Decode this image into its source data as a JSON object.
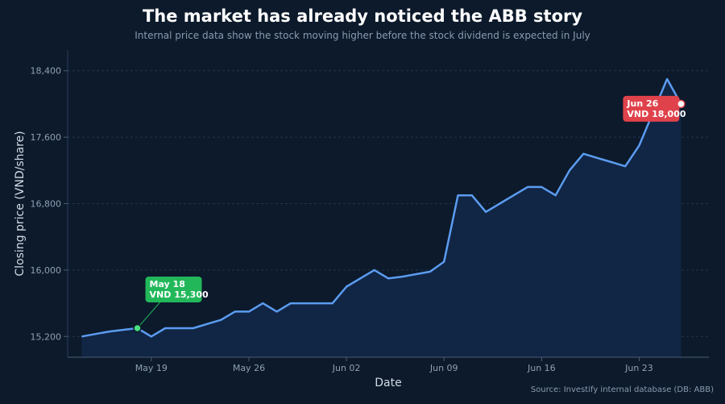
{
  "page": {
    "title": "The market has already noticed the ABB story",
    "subtitle": "Internal price data show the stock moving higher before the stock dividend is expected in July",
    "source": "Source: Investify internal database (DB: ABB)"
  },
  "colors": {
    "background": "#0c1a2b",
    "line": "#5b9cf0",
    "area": "#13284a",
    "grid": "#1f3550",
    "low_annotation": "#22b85a",
    "high_annotation": "#e0424b"
  },
  "chart_data": {
    "type": "line",
    "title": "The market has already noticed the ABB story",
    "subtitle": "Internal price data show the stock moving higher before the stock dividend is expected in July",
    "xlabel": "Date",
    "ylabel": "Closing price (VND/share)",
    "ylim": [
      14950,
      18650
    ],
    "yticks": [
      15200,
      16000,
      16800,
      17600,
      18400
    ],
    "ytick_labels": [
      "15,200",
      "16,000",
      "16,800",
      "17,600",
      "18,400"
    ],
    "xticks": [
      "May 19",
      "May 26",
      "Jun 02",
      "Jun 09",
      "Jun 16",
      "Jun 23"
    ],
    "xtick_dates": [
      "2025-05-19",
      "2025-05-26",
      "2025-06-02",
      "2025-06-09",
      "2025-06-16",
      "2025-06-23"
    ],
    "xlim": [
      "2025-05-13",
      "2025-06-28"
    ],
    "grid": true,
    "area_fill": true,
    "series": [
      {
        "x": [
          "2025-05-14",
          "2025-05-15",
          "2025-05-16",
          "2025-05-17",
          "2025-05-18",
          "2025-05-19",
          "2025-05-20",
          "2025-05-21",
          "2025-05-22",
          "2025-05-23",
          "2025-05-24",
          "2025-05-25",
          "2025-05-26",
          "2025-05-27",
          "2025-05-28",
          "2025-05-29",
          "2025-05-30",
          "2025-05-31",
          "2025-06-01",
          "2025-06-02",
          "2025-06-03",
          "2025-06-04",
          "2025-06-05",
          "2025-06-06",
          "2025-06-07",
          "2025-06-08",
          "2025-06-09",
          "2025-06-10",
          "2025-06-11",
          "2025-06-12",
          "2025-06-13",
          "2025-06-14",
          "2025-06-15",
          "2025-06-16",
          "2025-06-17",
          "2025-06-18",
          "2025-06-19",
          "2025-06-20",
          "2025-06-21",
          "2025-06-22",
          "2025-06-23",
          "2025-06-24",
          "2025-06-25",
          "2025-06-26"
        ],
        "values": [
          15200,
          15230,
          15260,
          15280,
          15300,
          15200,
          15300,
          15300,
          15300,
          15350,
          15400,
          15500,
          15500,
          15600,
          15500,
          15600,
          15600,
          15600,
          15600,
          15800,
          15900,
          16000,
          15900,
          15920,
          15950,
          15980,
          16100,
          16900,
          16900,
          16700,
          16800,
          16900,
          17000,
          17000,
          16900,
          17200,
          17400,
          17350,
          17300,
          17250,
          17500,
          17900,
          18300,
          18000
        ]
      }
    ],
    "annotations": [
      {
        "date": "2025-05-18",
        "value": 15300,
        "date_label": "May 18",
        "value_label": "VND 15,300",
        "kind": "low"
      },
      {
        "date": "2025-06-26",
        "value": 18000,
        "date_label": "Jun 26",
        "value_label": "VND 18,000",
        "kind": "high"
      }
    ]
  }
}
